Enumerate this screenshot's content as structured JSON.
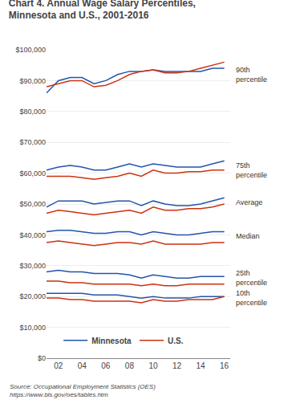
{
  "chart_data": {
    "type": "line",
    "title": "Chart 4. Annual Wage Salary Percentiles,\nMinnesota and U.S., 2001-2016",
    "source": "Source: Occupational Employment Statistics (OES)\nhttps://www.bls.gov/oes/tables.htm",
    "x": [
      2001,
      2002,
      2003,
      2004,
      2005,
      2006,
      2007,
      2008,
      2009,
      2010,
      2011,
      2012,
      2013,
      2014,
      2015,
      2016
    ],
    "series": [
      {
        "name": "Minnesota",
        "color": "#2255aa",
        "values": [
          86000,
          90000,
          91000,
          91000,
          89000,
          90000,
          92000,
          93000,
          93000,
          93500,
          93000,
          93000,
          93000,
          93000,
          94000,
          94000
        ]
      },
      {
        "name": "U.S.",
        "color": "#cc3311",
        "values": [
          88000,
          89000,
          90000,
          90000,
          88000,
          88500,
          90000,
          92000,
          93000,
          93500,
          92500,
          92500,
          93000,
          94000,
          95000,
          96000
        ]
      },
      {
        "name": "Minnesota",
        "color": "#2255aa",
        "values": [
          61000,
          62000,
          62500,
          62000,
          61000,
          61000,
          62000,
          63000,
          62000,
          63000,
          62500,
          62000,
          62000,
          62000,
          63000,
          64000
        ]
      },
      {
        "name": "U.S.",
        "color": "#cc3311",
        "values": [
          59000,
          59000,
          59000,
          58500,
          58000,
          58500,
          59000,
          60000,
          59000,
          61000,
          60000,
          60000,
          60500,
          60500,
          61000,
          61000
        ]
      },
      {
        "name": "Minnesota",
        "color": "#2255aa",
        "values": [
          49000,
          51000,
          51000,
          51000,
          50000,
          50500,
          51000,
          51000,
          49500,
          51000,
          50000,
          49500,
          49500,
          50000,
          51000,
          52000
        ]
      },
      {
        "name": "U.S.",
        "color": "#cc3311",
        "values": [
          47000,
          48000,
          47500,
          47000,
          46500,
          47000,
          47500,
          48000,
          47000,
          49000,
          48000,
          48000,
          48500,
          48500,
          49000,
          50000
        ]
      },
      {
        "name": "Minnesota",
        "color": "#2255aa",
        "values": [
          41000,
          41500,
          41500,
          41000,
          40500,
          40500,
          41000,
          41000,
          40000,
          41000,
          40500,
          40000,
          40000,
          40500,
          41000,
          41000
        ]
      },
      {
        "name": "U.S.",
        "color": "#cc3311",
        "values": [
          37500,
          38000,
          37500,
          37000,
          36500,
          37000,
          37500,
          37500,
          37000,
          38000,
          37000,
          37000,
          37000,
          37000,
          37500,
          37500
        ]
      },
      {
        "name": "Minnesota",
        "color": "#2255aa",
        "values": [
          28000,
          28500,
          28000,
          28000,
          27500,
          27500,
          27500,
          27000,
          26000,
          27000,
          26500,
          26000,
          26000,
          26500,
          26500,
          26500
        ]
      },
      {
        "name": "U.S.",
        "color": "#cc3311",
        "values": [
          25000,
          25000,
          24500,
          24500,
          24000,
          24000,
          24000,
          24000,
          23500,
          24000,
          23500,
          23500,
          24000,
          24000,
          24000,
          24000
        ]
      },
      {
        "name": "Minnesota",
        "color": "#2255aa",
        "values": [
          21000,
          21000,
          21000,
          21000,
          20500,
          20500,
          20500,
          20000,
          19500,
          20000,
          19500,
          19500,
          19500,
          20000,
          20000,
          20000
        ]
      },
      {
        "name": "U.S.",
        "color": "#cc3311",
        "values": [
          19500,
          19500,
          19000,
          19000,
          18500,
          18500,
          18500,
          18500,
          18000,
          19000,
          18500,
          18500,
          19000,
          19000,
          19000,
          20000
        ]
      }
    ],
    "xlim": [
      2001,
      2016.5
    ],
    "xticks": [
      {
        "value": 2002,
        "label": "02"
      },
      {
        "value": 2004,
        "label": "04"
      },
      {
        "value": 2006,
        "label": "06"
      },
      {
        "value": 2008,
        "label": "08"
      },
      {
        "value": 2010,
        "label": "10"
      },
      {
        "value": 2012,
        "label": "12"
      },
      {
        "value": 2014,
        "label": "14"
      },
      {
        "value": 2016,
        "label": "16"
      }
    ],
    "ylim": [
      0,
      100000
    ],
    "yticks": [
      {
        "value": 0,
        "label": "$0"
      },
      {
        "value": 10000,
        "label": "$10,000"
      },
      {
        "value": 20000,
        "label": "$20,000"
      },
      {
        "value": 30000,
        "label": "$30,000"
      },
      {
        "value": 40000,
        "label": "$40,000"
      },
      {
        "value": 50000,
        "label": "$50,000"
      },
      {
        "value": 60000,
        "label": "$60,000"
      },
      {
        "value": 70000,
        "label": "$70,000"
      },
      {
        "value": 80000,
        "label": "$80,000"
      },
      {
        "value": 90000,
        "label": "$90,000"
      },
      {
        "value": 100000,
        "label": "$100,000"
      }
    ],
    "annotations": [
      {
        "text": "90th\npercentile",
        "y": 92000
      },
      {
        "text": "75th\npercentile",
        "y": 61000
      },
      {
        "text": "Average",
        "y": 50500
      },
      {
        "text": "Median",
        "y": 39500
      },
      {
        "text": "25th\npercentile",
        "y": 26000
      },
      {
        "text": "10th\npercentile",
        "y": 19500
      }
    ],
    "grid": true,
    "legend": "bottom"
  }
}
